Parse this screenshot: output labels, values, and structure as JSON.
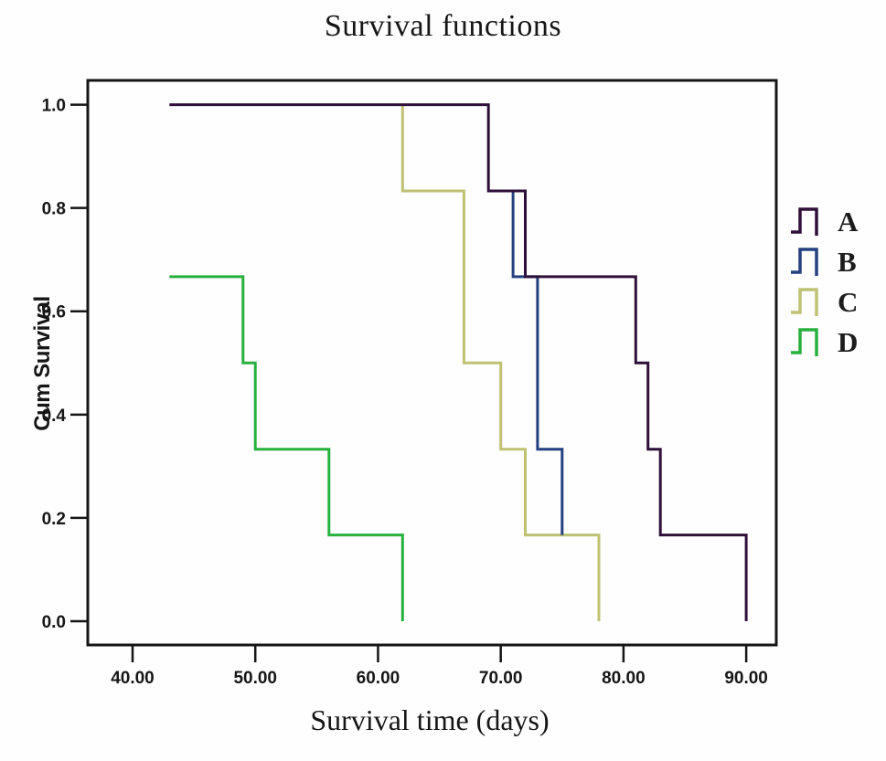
{
  "chart_data": {
    "type": "step",
    "title": "Survival functions",
    "xlabel": "Survival time (days)",
    "ylabel": "Cum Survival",
    "x_ticks": [
      40,
      50,
      60,
      70,
      80,
      90
    ],
    "x_tick_labels": [
      "40.00",
      "50.00",
      "60.00",
      "70.00",
      "80.00",
      "90.00"
    ],
    "y_ticks": [
      0.0,
      0.2,
      0.4,
      0.6,
      0.8,
      1.0
    ],
    "y_tick_labels": [
      "0.0",
      "0.2",
      "0.4",
      "0.6",
      "0.8",
      "1.0"
    ],
    "xlim": [
      36.35,
      92.45
    ],
    "ylim": [
      -0.046,
      1.047
    ],
    "grid": false,
    "legend_position": "right",
    "axis_color": "#151515",
    "series": [
      {
        "name": "A",
        "color": "#30103a",
        "points": [
          [
            43,
            1.0
          ],
          [
            69,
            1.0
          ],
          [
            69,
            0.833
          ],
          [
            72,
            0.833
          ],
          [
            72,
            0.667
          ],
          [
            81,
            0.667
          ],
          [
            81,
            0.5
          ],
          [
            82,
            0.5
          ],
          [
            82,
            0.333
          ],
          [
            83,
            0.333
          ],
          [
            83,
            0.167
          ],
          [
            90,
            0.167
          ],
          [
            90,
            0.0
          ]
        ]
      },
      {
        "name": "B",
        "color": "#25407f",
        "points": [
          [
            71,
            0.833
          ],
          [
            71,
            0.667
          ],
          [
            73,
            0.667
          ],
          [
            73,
            0.333
          ],
          [
            75,
            0.333
          ],
          [
            75,
            0.167
          ]
        ]
      },
      {
        "name": "C",
        "color": "#bfc173",
        "points": [
          [
            62,
            1.0
          ],
          [
            62,
            0.833
          ],
          [
            67,
            0.833
          ],
          [
            67,
            0.5
          ],
          [
            70,
            0.5
          ],
          [
            70,
            0.333
          ],
          [
            72,
            0.333
          ],
          [
            72,
            0.167
          ],
          [
            78,
            0.167
          ],
          [
            78,
            0.0
          ]
        ]
      },
      {
        "name": "D",
        "color": "#28b03e",
        "points": [
          [
            43,
            0.667
          ],
          [
            49,
            0.667
          ],
          [
            49,
            0.5
          ],
          [
            50,
            0.5
          ],
          [
            50,
            0.333
          ],
          [
            56,
            0.333
          ],
          [
            56,
            0.167
          ],
          [
            62,
            0.167
          ],
          [
            62,
            0.0
          ]
        ]
      }
    ]
  }
}
